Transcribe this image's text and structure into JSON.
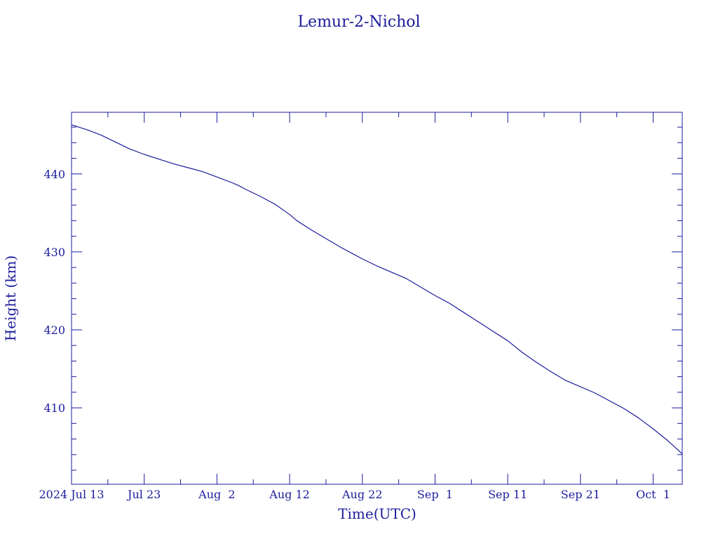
{
  "colors": {
    "ink": "#1c1c9c",
    "background": "#ffffff"
  },
  "chart_data": {
    "type": "line",
    "title": "Lemur-2-Nichol",
    "xlabel": "Time(UTC)",
    "ylabel": "Height (km)",
    "xlim": [
      "2024-07-13",
      "2024-10-05"
    ],
    "ylim": [
      400.2,
      447.9
    ],
    "grid": false,
    "x_ticks": [
      {
        "date": "2024-07-13",
        "label": "2024 Jul 13"
      },
      {
        "date": "2024-07-23",
        "label": "Jul 23"
      },
      {
        "date": "2024-08-02",
        "label": "Aug  2"
      },
      {
        "date": "2024-08-12",
        "label": "Aug 12"
      },
      {
        "date": "2024-08-22",
        "label": "Aug 22"
      },
      {
        "date": "2024-09-01",
        "label": "Sep  1"
      },
      {
        "date": "2024-09-11",
        "label": "Sep 11"
      },
      {
        "date": "2024-09-21",
        "label": "Sep 21"
      },
      {
        "date": "2024-10-01",
        "label": "Oct  1"
      }
    ],
    "y_ticks": [
      {
        "value": 440,
        "label": "440"
      },
      {
        "value": 430,
        "label": "430"
      },
      {
        "value": 420,
        "label": "420"
      },
      {
        "value": 410,
        "label": "410"
      }
    ],
    "x": [
      "2024-07-13",
      "2024-07-15",
      "2024-07-17",
      "2024-07-19",
      "2024-07-21",
      "2024-07-23",
      "2024-07-25",
      "2024-07-27",
      "2024-07-29",
      "2024-07-31",
      "2024-08-02",
      "2024-08-04",
      "2024-08-05",
      "2024-08-06",
      "2024-08-08",
      "2024-08-10",
      "2024-08-12",
      "2024-08-13",
      "2024-08-15",
      "2024-08-17",
      "2024-08-19",
      "2024-08-21",
      "2024-08-22",
      "2024-08-24",
      "2024-08-26",
      "2024-08-28",
      "2024-08-30",
      "2024-09-01",
      "2024-09-03",
      "2024-09-05",
      "2024-09-07",
      "2024-09-09",
      "2024-09-11",
      "2024-09-13",
      "2024-09-15",
      "2024-09-17",
      "2024-09-19",
      "2024-09-21",
      "2024-09-23",
      "2024-09-25",
      "2024-09-27",
      "2024-09-29",
      "2024-10-01",
      "2024-10-03",
      "2024-10-05"
    ],
    "y": [
      446.3,
      445.7,
      445.0,
      444.1,
      443.2,
      442.5,
      441.9,
      441.3,
      440.8,
      440.3,
      439.6,
      438.9,
      438.5,
      438.0,
      437.1,
      436.1,
      434.8,
      434.0,
      432.8,
      431.7,
      430.6,
      429.6,
      429.1,
      428.2,
      427.4,
      426.6,
      425.5,
      424.4,
      423.4,
      422.2,
      421.0,
      419.8,
      418.6,
      417.1,
      415.8,
      414.6,
      413.5,
      412.7,
      411.9,
      410.9,
      409.9,
      408.7,
      407.3,
      405.8,
      404.1
    ]
  }
}
